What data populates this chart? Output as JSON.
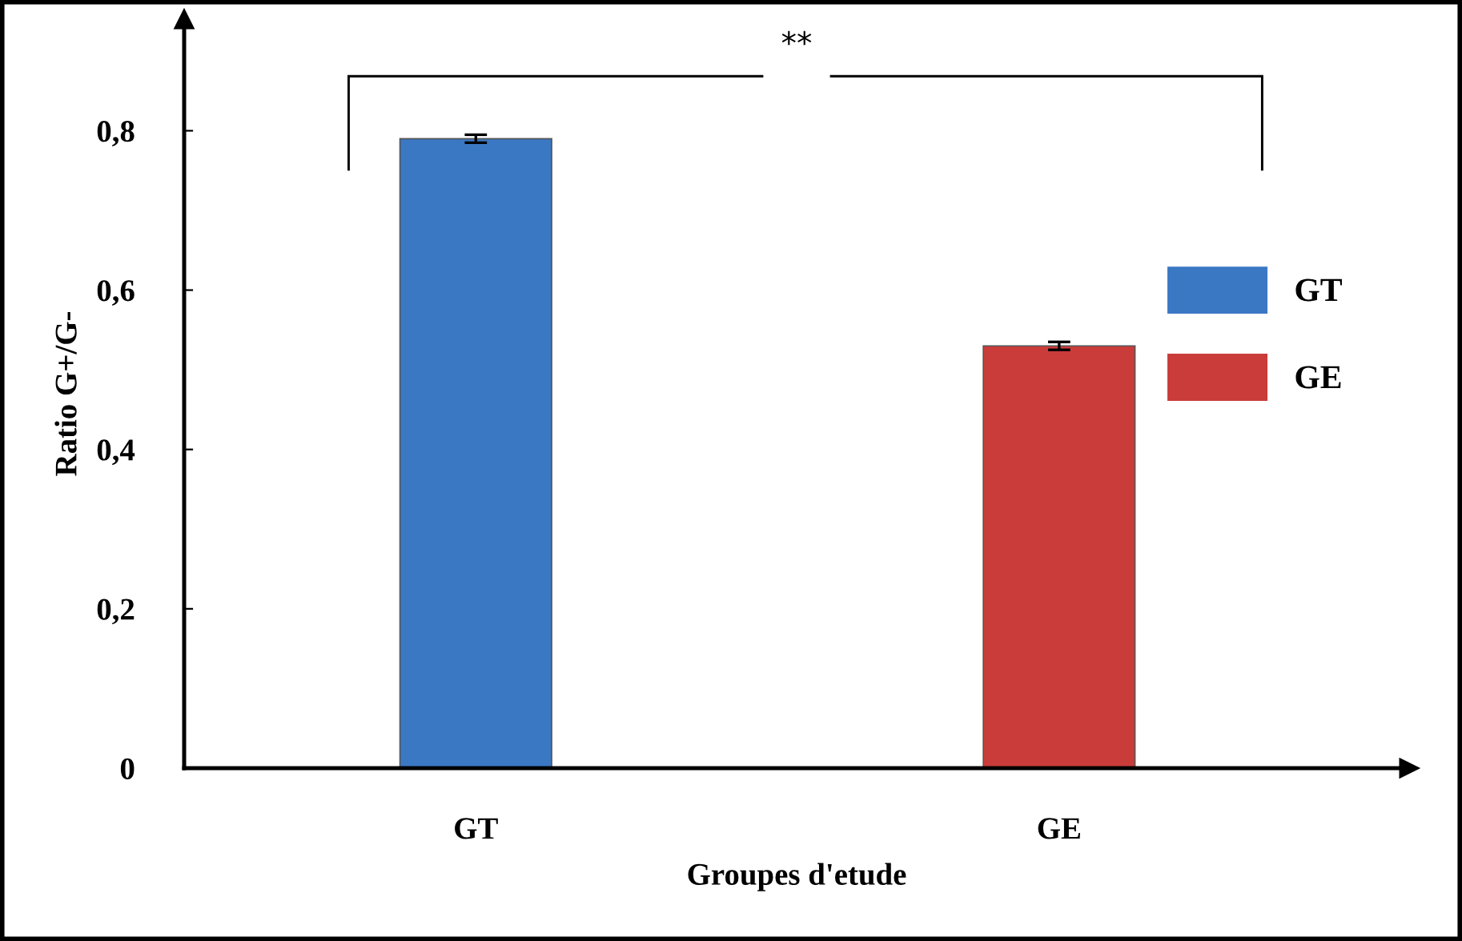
{
  "chart_data": {
    "type": "bar",
    "xlabel": "Groupes d'etude",
    "ylabel": "Ratio G+/G-",
    "categories": [
      "GT",
      "GE"
    ],
    "series": [
      {
        "name": "GT",
        "color": "#3b78c4",
        "values": [
          0.79,
          null
        ],
        "errors": [
          0.005,
          null
        ]
      },
      {
        "name": "GE",
        "color": "#c93c3a",
        "values": [
          null,
          0.53
        ],
        "errors": [
          null,
          0.005
        ]
      }
    ],
    "ylim": [
      0,
      0.94
    ],
    "yticks": [
      {
        "value": 0,
        "label": "0"
      },
      {
        "value": 0.2,
        "label": "0,2"
      },
      {
        "value": 0.4,
        "label": "0,4"
      },
      {
        "value": 0.6,
        "label": "0,6"
      },
      {
        "value": 0.8,
        "label": "0,8"
      }
    ],
    "annotations": [
      "**"
    ],
    "legend": "right",
    "grid": false
  }
}
